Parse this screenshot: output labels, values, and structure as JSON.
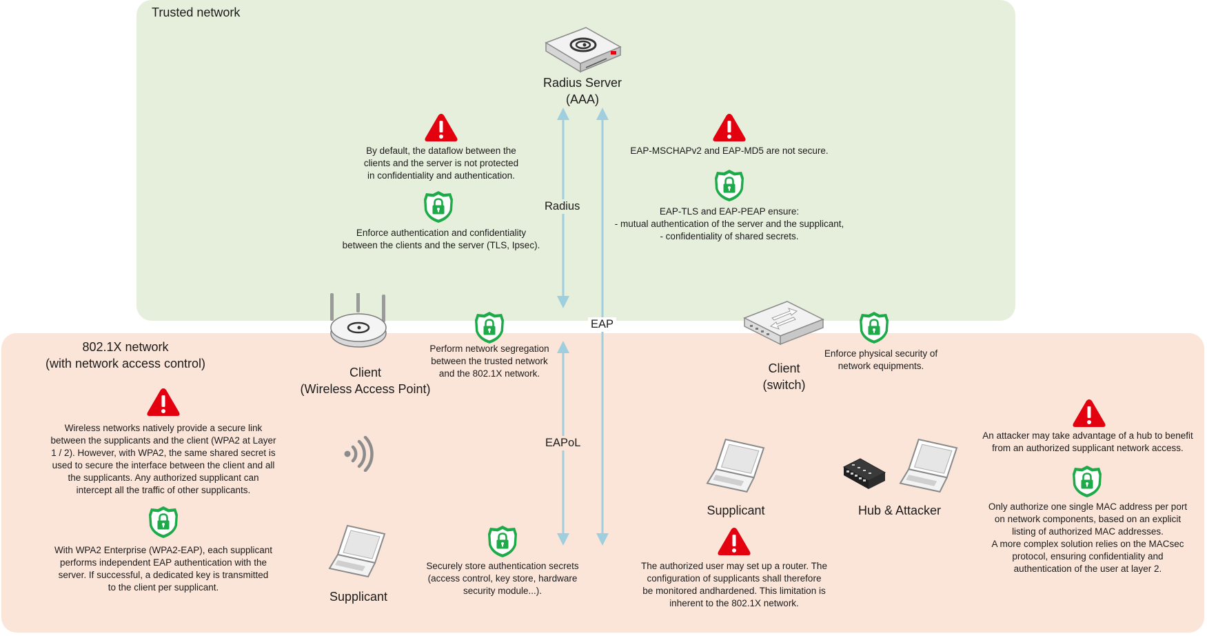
{
  "zones": {
    "trusted_title": "Trusted network",
    "dot1x_title_line1": "802.1X network",
    "dot1x_title_line2": "(with network access control)"
  },
  "nodes": {
    "radius_line1": "Radius Server",
    "radius_line2": "(AAA)",
    "wap_line1": "Client",
    "wap_line2": "(Wireless Access Point)",
    "switch_line1": "Client",
    "switch_line2": "(switch)",
    "supplicant_wifi": "Supplicant",
    "supplicant_wired": "Supplicant",
    "hub_attacker": "Hub & Attacker"
  },
  "protocols": {
    "radius": "Radius",
    "eap": "EAP",
    "eapol": "EAPoL"
  },
  "notes": {
    "w_dataflow": [
      "By default, the dataflow between the",
      "clients and the server is not protected",
      "in confidentiality and authentication."
    ],
    "s_enforce_auth": [
      "Enforce authentication and confidentiality",
      "between the clients and the server (TLS, Ipsec)."
    ],
    "w_mschap": [
      "EAP-MSCHAPv2 and EAP-MD5 are not secure."
    ],
    "s_eaptls": [
      "EAP-TLS and EAP-PEAP ensure:",
      "- mutual authentication of the server and the supplicant,",
      "- confidentiality of shared secrets."
    ],
    "s_segregation": [
      "Perform network segregation",
      "between the trusted network",
      "and the 802.1X network."
    ],
    "s_physical": [
      "Enforce physical security of",
      "network equipments."
    ],
    "w_wireless": [
      "Wireless networks natively provide a secure link",
      "between the supplicants and the client (WPA2 at Layer",
      "1 / 2). However, with WPA2, the same shared secret is",
      "used to secure the interface between the client and all",
      "the supplicants. Any authorized supplicant can",
      "intercept all the traffic of other supplicants."
    ],
    "s_wpa2": [
      "With WPA2 Enterprise (WPA2-EAP), each supplicant",
      "performs independent EAP authentication with the",
      "server. If successful, a dedicated key is transmitted",
      "to the client per supplicant."
    ],
    "s_store": [
      "Securely store authentication secrets",
      "(access control, key store, hardware",
      "security module...)."
    ],
    "w_router": [
      "The authorized user may set up a router. The",
      "configuration of supplicants shall therefore",
      "be monitored andhardened. This limitation is",
      "inherent to the 802.1X network."
    ],
    "w_hub": [
      "An attacker may take advantage of a hub to benefit",
      "from an authorized supplicant network access."
    ],
    "s_mac": [
      "Only authorize one single MAC address per port",
      "on network components, based on an explicit",
      "listing of authorized MAC addresses.",
      "A more complex solution relies on the MACsec",
      "protocol, ensuring confidentiality and",
      "authentication of the user at layer 2."
    ]
  },
  "colors": {
    "trusted_zone": "#e6efdc",
    "dot1x_zone": "#fbe5d9",
    "warning": "#e3000f",
    "security": "#1faa4a",
    "arrow": "#9fcfdf"
  }
}
